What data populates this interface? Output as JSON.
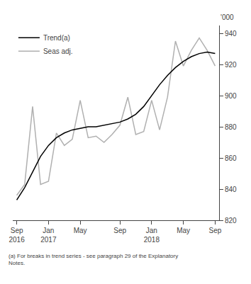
{
  "chart_data": {
    "type": "line",
    "ylabel": "'000",
    "annotations": [
      "(a) For breaks in trend series - see paragraph 29 of the Explanatory\nNotes."
    ],
    "categories": [
      "Sep\n2016",
      null,
      null,
      null,
      "Jan\n2017",
      null,
      null,
      null,
      "May",
      null,
      null,
      null,
      null,
      "Sep",
      null,
      null,
      null,
      "Jan\n2018",
      null,
      null,
      null,
      "May",
      null,
      null,
      null,
      "Sep"
    ],
    "series": [
      {
        "name": "Seas adj.",
        "color": "#b0b0b0",
        "values": [
          836,
          843,
          893,
          843,
          845,
          876,
          868,
          872,
          897,
          873,
          874,
          870,
          875,
          881,
          899,
          875,
          877,
          897,
          878,
          899,
          935,
          919,
          929,
          937,
          929,
          919
        ]
      },
      {
        "name": "Trend(a)",
        "color": "#000000",
        "values": [
          833,
          841,
          851,
          861,
          868,
          873,
          876,
          878,
          879,
          880,
          880,
          881,
          882,
          883,
          885,
          888,
          893,
          900,
          907,
          913,
          918,
          922,
          925,
          927,
          928,
          927
        ]
      }
    ],
    "ylim": [
      820,
      945
    ],
    "yticks": [
      820,
      840,
      860,
      880,
      900,
      920,
      940
    ],
    "grid": false,
    "legend": "upper left"
  }
}
